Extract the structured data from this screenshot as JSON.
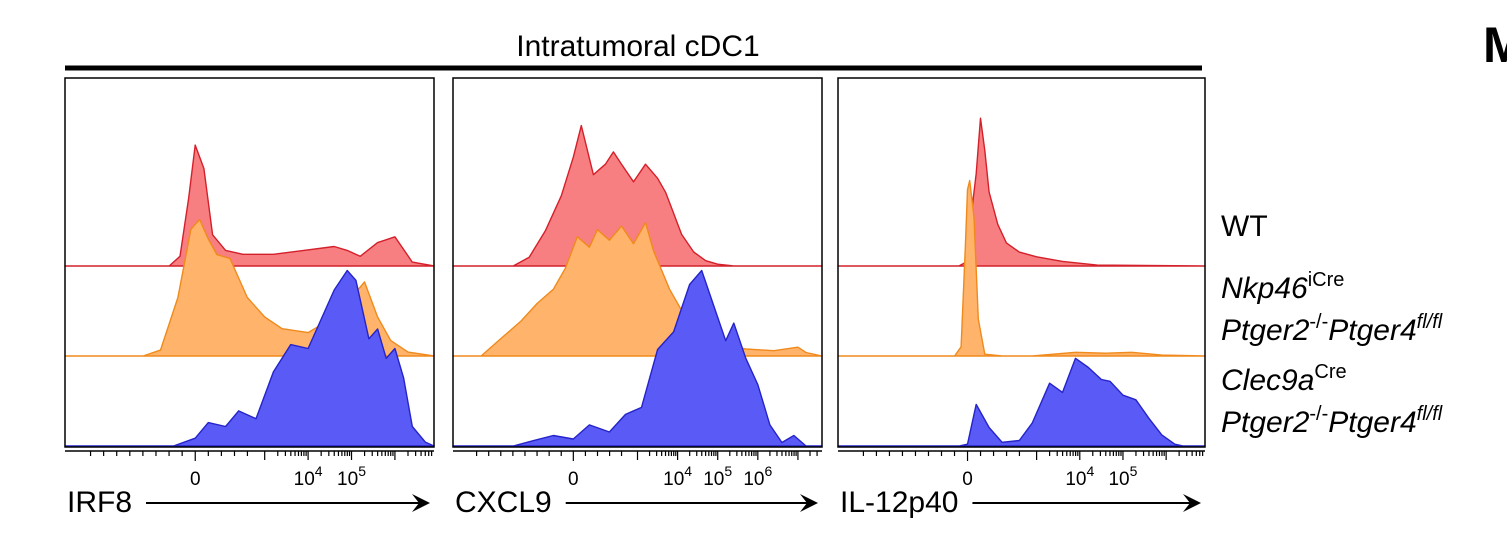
{
  "figure": {
    "group_title": "Intratumoral cDC1",
    "panel_letter_fragment": "M",
    "legend": [
      {
        "lines": [
          [
            {
              "text": "WT",
              "italic": false,
              "sup": false
            }
          ]
        ]
      },
      {
        "lines": [
          [
            {
              "text": "Nkp46",
              "italic": true,
              "sup": false
            },
            {
              "text": "iCre",
              "italic": false,
              "sup": true
            }
          ],
          [
            {
              "text": "Ptger2",
              "italic": true,
              "sup": false
            },
            {
              "text": "-/-",
              "italic": false,
              "sup": true
            },
            {
              "text": "Ptger4",
              "italic": true,
              "sup": false
            },
            {
              "text": "fl/fl",
              "italic": true,
              "sup": true
            }
          ]
        ]
      },
      {
        "lines": [
          [
            {
              "text": "Clec9a",
              "italic": true,
              "sup": false
            },
            {
              "text": "Cre",
              "italic": false,
              "sup": true
            }
          ],
          [
            {
              "text": "Ptger2",
              "italic": true,
              "sup": false
            },
            {
              "text": "-/-",
              "italic": false,
              "sup": true
            },
            {
              "text": "Ptger4",
              "italic": true,
              "sup": false
            },
            {
              "text": "fl/fl",
              "italic": true,
              "sup": true
            }
          ]
        ]
      }
    ]
  },
  "chart_data": [
    {
      "type": "area",
      "xlabel": "IRF8",
      "x_scale": "biexponential",
      "tick_labels": [
        {
          "base": "0",
          "exp": "",
          "value": 0
        },
        {
          "base": "10",
          "exp": "4",
          "value": 10000
        },
        {
          "base": "10",
          "exp": "5",
          "value": 100000
        }
      ],
      "xlim": [
        -3,
        5.5
      ],
      "series": [
        {
          "color": "#f77f81",
          "stroke": "#d4202a",
          "x": [
            -3,
            -0.6,
            -0.35,
            -0.15,
            0,
            0.2,
            0.4,
            0.7,
            1.1,
            1.8,
            2.5,
            3.2,
            3.5,
            3.8,
            4.2,
            4.6,
            5.0,
            5.5
          ],
          "y": [
            0,
            0,
            0.05,
            0.35,
            0.62,
            0.5,
            0.16,
            0.08,
            0.06,
            0.06,
            0.08,
            0.1,
            0.08,
            0.05,
            0.12,
            0.15,
            0.02,
            0
          ]
        },
        {
          "color": "#ffb36b",
          "stroke": "#f08a1c",
          "x": [
            -3,
            -1.2,
            -0.8,
            -0.4,
            -0.1,
            0.1,
            0.3,
            0.5,
            0.8,
            1.2,
            1.6,
            2.0,
            2.6,
            3.2,
            3.6,
            3.9,
            4.2,
            4.5,
            4.9,
            5.5
          ],
          "y": [
            0,
            0,
            0.03,
            0.3,
            0.65,
            0.7,
            0.6,
            0.52,
            0.5,
            0.3,
            0.2,
            0.14,
            0.12,
            0.2,
            0.3,
            0.38,
            0.2,
            0.08,
            0.02,
            0
          ]
        },
        {
          "color": "#5a5af7",
          "stroke": "#2424c8",
          "x": [
            -3,
            -0.5,
            0,
            0.3,
            0.7,
            1.0,
            1.4,
            1.8,
            2.2,
            2.6,
            3.0,
            3.2,
            3.5,
            3.7,
            4.0,
            4.2,
            4.4,
            4.6,
            4.8,
            5.0,
            5.3,
            5.5
          ],
          "y": [
            0,
            0,
            0.04,
            0.12,
            0.1,
            0.18,
            0.14,
            0.38,
            0.52,
            0.5,
            0.7,
            0.8,
            0.9,
            0.85,
            0.55,
            0.6,
            0.45,
            0.5,
            0.35,
            0.1,
            0.02,
            0
          ]
        }
      ]
    },
    {
      "type": "area",
      "xlabel": "CXCL9",
      "x_scale": "biexponential",
      "tick_labels": [
        {
          "base": "0",
          "exp": "",
          "value": 0
        },
        {
          "base": "10",
          "exp": "4",
          "value": 10000
        },
        {
          "base": "10",
          "exp": "5",
          "value": 100000
        },
        {
          "base": "10",
          "exp": "6",
          "value": 1000000
        }
      ],
      "xlim": [
        -3,
        6.2
      ],
      "series": [
        {
          "color": "#f77f81",
          "stroke": "#d4202a",
          "x": [
            -3,
            -1.5,
            -1.1,
            -0.7,
            -0.3,
            0,
            0.2,
            0.5,
            0.8,
            1.0,
            1.2,
            1.5,
            1.8,
            2.1,
            2.3,
            2.5,
            2.7,
            3.0,
            3.3,
            3.6,
            4.0,
            6.2
          ],
          "y": [
            0,
            0,
            0.05,
            0.2,
            0.4,
            0.62,
            0.8,
            0.52,
            0.58,
            0.65,
            0.58,
            0.48,
            0.58,
            0.5,
            0.42,
            0.3,
            0.18,
            0.08,
            0.03,
            0.01,
            0,
            0
          ]
        },
        {
          "color": "#ffb36b",
          "stroke": "#f08a1c",
          "x": [
            -3,
            -2.3,
            -1.8,
            -1.3,
            -0.9,
            -0.5,
            -0.2,
            0.1,
            0.4,
            0.6,
            0.9,
            1.2,
            1.5,
            1.8,
            2.0,
            2.4,
            2.8,
            3.3,
            3.8,
            4.3,
            5.0,
            5.6,
            5.8,
            6.2
          ],
          "y": [
            0,
            0,
            0.1,
            0.2,
            0.3,
            0.38,
            0.5,
            0.68,
            0.62,
            0.72,
            0.66,
            0.74,
            0.64,
            0.76,
            0.6,
            0.38,
            0.22,
            0.12,
            0.06,
            0.04,
            0.03,
            0.05,
            0.02,
            0
          ]
        },
        {
          "color": "#5a5af7",
          "stroke": "#2424c8",
          "x": [
            -3,
            -1.5,
            -1,
            -0.5,
            0,
            0.4,
            0.9,
            1.3,
            1.7,
            2.1,
            2.5,
            2.9,
            3.2,
            3.5,
            3.8,
            4.0,
            4.3,
            4.6,
            4.9,
            5.2,
            5.5,
            5.8,
            6.2
          ],
          "y": [
            0,
            0,
            0.03,
            0.06,
            0.04,
            0.12,
            0.08,
            0.18,
            0.22,
            0.55,
            0.65,
            0.92,
            1.0,
            0.8,
            0.6,
            0.7,
            0.5,
            0.35,
            0.12,
            0.02,
            0.06,
            0,
            0
          ]
        }
      ]
    },
    {
      "type": "area",
      "xlabel": "IL-12p40",
      "x_scale": "biexponential",
      "tick_labels": [
        {
          "base": "0",
          "exp": "",
          "value": 0
        },
        {
          "base": "10",
          "exp": "4",
          "value": 10000
        },
        {
          "base": "10",
          "exp": "5",
          "value": 100000
        }
      ],
      "xlim": [
        -3,
        5.5
      ],
      "series": [
        {
          "color": "#f77f81",
          "stroke": "#d4202a",
          "x": [
            -3,
            -0.2,
            0,
            0.1,
            0.2,
            0.3,
            0.4,
            0.5,
            0.7,
            0.9,
            1.2,
            1.6,
            2.2,
            3.0,
            5.5
          ],
          "y": [
            0,
            0,
            0.05,
            0.6,
            1.0,
            1.6,
            1.25,
            0.8,
            0.45,
            0.25,
            0.15,
            0.1,
            0.05,
            0.01,
            0
          ]
        },
        {
          "color": "#ffb36b",
          "stroke": "#f08a1c",
          "x": [
            -3,
            -0.3,
            -0.15,
            -0.05,
            0,
            0.05,
            0.15,
            0.25,
            0.4,
            0.8,
            1.5,
            2.5,
            3.2,
            3.8,
            4.5,
            5.5
          ],
          "y": [
            0,
            0,
            0.1,
            1.2,
            1.8,
            1.9,
            1.5,
            0.4,
            0.02,
            0,
            0,
            0.04,
            0.03,
            0.04,
            0.01,
            0
          ]
        },
        {
          "color": "#5a5af7",
          "stroke": "#2424c8",
          "x": [
            -3,
            -0.2,
            0,
            0.2,
            0.5,
            0.8,
            1.2,
            1.5,
            1.9,
            2.2,
            2.5,
            2.8,
            3.1,
            3.3,
            3.6,
            3.9,
            4.2,
            4.5,
            4.8,
            5.0,
            5.5
          ],
          "y": [
            0,
            0,
            0.02,
            0.45,
            0.2,
            0.04,
            0.06,
            0.25,
            0.68,
            0.58,
            0.95,
            0.85,
            0.72,
            0.7,
            0.55,
            0.5,
            0.3,
            0.12,
            0.02,
            0,
            0
          ]
        }
      ]
    }
  ]
}
